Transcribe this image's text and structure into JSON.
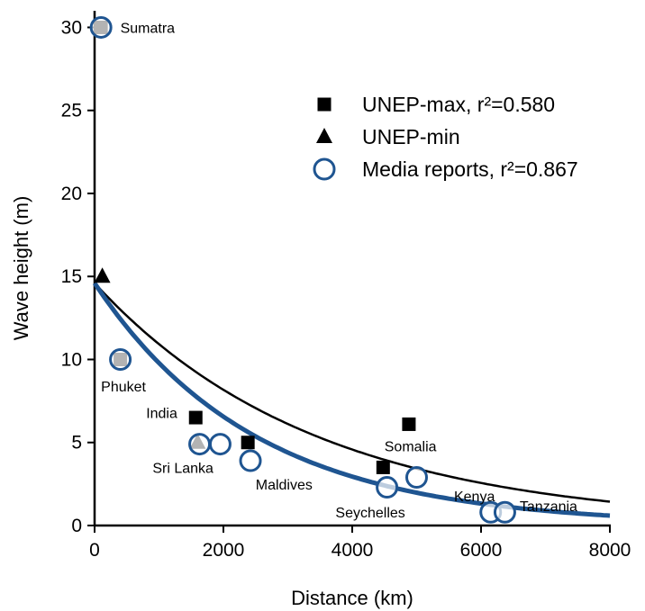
{
  "chart_data": {
    "type": "scatter",
    "xlabel": "Distance (km)",
    "ylabel": "Wave height (m)",
    "xlim": [
      0,
      8000
    ],
    "ylim": [
      0,
      31
    ],
    "xticks": [
      0,
      2000,
      4000,
      6000,
      8000
    ],
    "yticks": [
      0,
      5,
      10,
      15,
      20,
      25,
      30
    ],
    "grid": false,
    "legend_position": "top-right",
    "series": [
      {
        "name": "UNEP-max, r²=0.580",
        "marker": "square",
        "color": "#000000",
        "points": [
          {
            "x": 100,
            "y": 30
          },
          {
            "x": 400,
            "y": 10
          },
          {
            "x": 1570,
            "y": 6.5
          },
          {
            "x": 2380,
            "y": 5
          },
          {
            "x": 4480,
            "y": 3.5
          },
          {
            "x": 4880,
            "y": 6.1
          }
        ]
      },
      {
        "name": "UNEP-min",
        "marker": "triangle",
        "color": "#000000",
        "points": [
          {
            "x": 120,
            "y": 15
          },
          {
            "x": 1600,
            "y": 5
          }
        ]
      },
      {
        "name": "Media reports, r²=0.867",
        "marker": "circle",
        "color": "#1f5591",
        "points": [
          {
            "x": 100,
            "y": 30
          },
          {
            "x": 400,
            "y": 10
          },
          {
            "x": 1630,
            "y": 4.9
          },
          {
            "x": 1950,
            "y": 4.9
          },
          {
            "x": 2420,
            "y": 3.9
          },
          {
            "x": 4540,
            "y": 2.3
          },
          {
            "x": 5000,
            "y": 2.9
          },
          {
            "x": 6150,
            "y": 0.8
          },
          {
            "x": 6370,
            "y": 0.8
          }
        ]
      }
    ],
    "fit_curves": [
      {
        "series": "UNEP-max",
        "color": "#000000",
        "type": "exponential",
        "a": 14.6,
        "b": 0.00029
      },
      {
        "series": "Media reports",
        "color": "#1f5591",
        "type": "exponential",
        "a": 14.6,
        "b": 0.0004
      }
    ],
    "annotations": [
      {
        "text": "Sumatra",
        "x": 400,
        "y": 30
      },
      {
        "text": "Phuket",
        "x": 100,
        "y": 8.4
      },
      {
        "text": "India",
        "x": 800,
        "y": 6.8
      },
      {
        "text": "Sri Lanka",
        "x": 900,
        "y": 3.5
      },
      {
        "text": "Maldives",
        "x": 2500,
        "y": 2.5
      },
      {
        "text": "Somalia",
        "x": 4500,
        "y": 4.8
      },
      {
        "text": "Seychelles",
        "x": 3740,
        "y": 0.8
      },
      {
        "text": "Kenya",
        "x": 5580,
        "y": 1.8
      },
      {
        "text": "Tanzania",
        "x": 6600,
        "y": 1.2
      }
    ]
  }
}
